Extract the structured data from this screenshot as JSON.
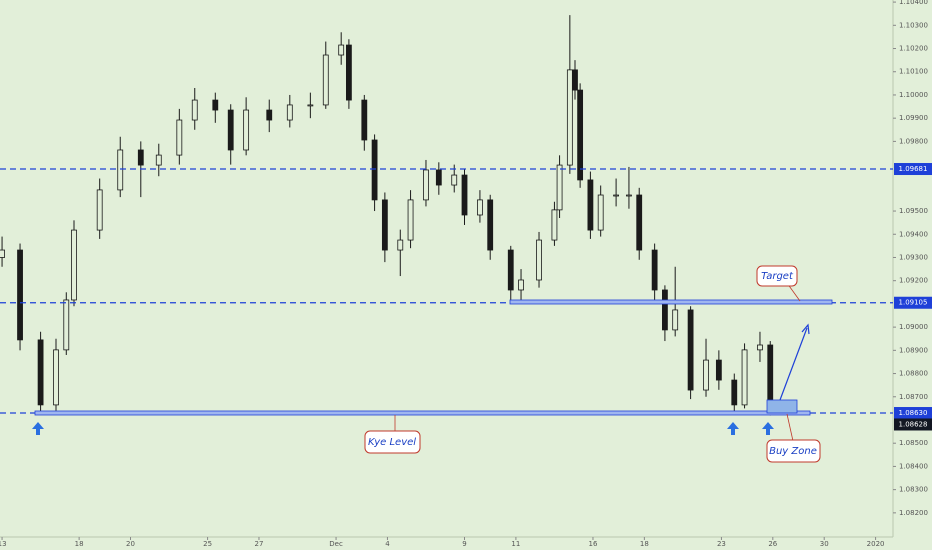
{
  "chart_data": {
    "type": "candlestick",
    "up_color": "#e2efd9",
    "down_color": "#1a1a1a",
    "wick_color": "#1a1a1a",
    "level_color": "#1e40d8",
    "price_color": "#131722",
    "x": [
      0,
      0.7,
      1.5,
      2.1,
      2.5,
      2.8,
      3.8,
      4.6,
      5.4,
      6.1,
      6.9,
      7.5,
      8.3,
      8.9,
      9.5,
      10.4,
      11.2,
      12.0,
      12.6,
      13.2,
      13.5,
      14.1,
      14.5,
      14.9,
      15.5,
      15.9,
      16.5,
      17.0,
      17.6,
      18.0,
      18.6,
      19.0,
      19.8,
      20.2,
      20.9,
      21.5,
      21.7,
      22.1,
      22.3,
      22.5,
      22.9,
      23.3,
      23.9,
      24.4,
      24.8,
      25.4,
      25.8,
      26.2,
      26.8,
      27.4,
      27.9,
      28.5,
      28.9,
      29.5,
      29.9
    ],
    "open": [
      1.093,
      1.09332,
      1.08945,
      1.08665,
      1.08902,
      1.09117,
      1.09418,
      1.09591,
      1.09763,
      1.09698,
      1.09741,
      1.09892,
      1.09978,
      1.09935,
      1.09763,
      1.09935,
      1.09892,
      1.09957,
      1.09957,
      1.10172,
      1.10215,
      1.09978,
      1.09806,
      1.09548,
      1.09332,
      1.09375,
      1.09548,
      1.09677,
      1.09612,
      1.09655,
      1.09483,
      1.09548,
      1.09332,
      1.0916,
      1.09203,
      1.09375,
      1.09505,
      1.09698,
      1.10108,
      1.10021,
      1.09634,
      1.09418,
      1.09569,
      1.09569,
      1.09569,
      1.09332,
      1.0916,
      1.08988,
      1.09074,
      1.08729,
      1.08858,
      1.08772,
      1.08665,
      1.08902,
      1.08923
    ],
    "high": [
      1.0939,
      1.0936,
      1.0898,
      1.0895,
      1.0915,
      1.0946,
      1.0964,
      1.0982,
      1.098,
      1.0979,
      1.0994,
      1.1003,
      1.1001,
      1.0996,
      1.0999,
      1.0998,
      1.1,
      1.1001,
      1.1023,
      1.1027,
      1.1024,
      1.1,
      1.0983,
      1.0958,
      1.0942,
      1.0959,
      1.0972,
      1.0971,
      1.097,
      1.0968,
      1.0959,
      1.0957,
      1.0935,
      1.0925,
      1.0941,
      1.0954,
      1.0974,
      1.10344,
      1.1015,
      1.1005,
      1.0967,
      1.0961,
      1.0964,
      1.0969,
      1.096,
      1.0936,
      1.0918,
      1.0926,
      1.0909,
      1.0895,
      1.089,
      1.088,
      1.0893,
      1.0898,
      1.0894
    ],
    "low": [
      1.0926,
      1.089,
      1.0863,
      1.0864,
      1.0888,
      1.0909,
      1.0938,
      1.0956,
      1.0956,
      1.0965,
      1.097,
      1.0985,
      1.0988,
      1.097,
      1.0974,
      1.0984,
      1.0986,
      1.099,
      1.0994,
      1.1013,
      1.0994,
      1.0976,
      1.095,
      1.0928,
      1.0922,
      1.0934,
      1.0952,
      1.0957,
      1.0958,
      1.0944,
      1.0945,
      1.0929,
      1.0911,
      1.09105,
      1.0917,
      1.0935,
      1.0947,
      1.0966,
      1.0998,
      1.096,
      1.0938,
      1.0939,
      1.0952,
      1.0951,
      1.0929,
      1.0911,
      1.0894,
      1.0896,
      1.0869,
      1.087,
      1.0873,
      1.0863,
      1.0865,
      1.0885,
      1.0862
    ],
    "close": [
      1.09332,
      1.08945,
      1.08665,
      1.08902,
      1.09117,
      1.09418,
      1.09591,
      1.09763,
      1.09698,
      1.09741,
      1.09892,
      1.09978,
      1.09935,
      1.09763,
      1.09935,
      1.09892,
      1.09957,
      1.09957,
      1.10172,
      1.10215,
      1.09978,
      1.09806,
      1.09548,
      1.09332,
      1.09375,
      1.09548,
      1.09677,
      1.09612,
      1.09655,
      1.09483,
      1.09548,
      1.09332,
      1.0916,
      1.09203,
      1.09375,
      1.09505,
      1.09698,
      1.10108,
      1.10021,
      1.09634,
      1.09418,
      1.09569,
      1.09569,
      1.09569,
      1.09332,
      1.0916,
      1.08988,
      1.09074,
      1.08729,
      1.08858,
      1.08772,
      1.08665,
      1.08902,
      1.08923,
      1.08628
    ],
    "xlim": [
      -0.08,
      34.6
    ],
    "xticks": [
      {
        "value": 0,
        "label": "13"
      },
      {
        "value": 3,
        "label": "18"
      },
      {
        "value": 5,
        "label": "20"
      },
      {
        "value": 8,
        "label": "25"
      },
      {
        "value": 10,
        "label": "27"
      },
      {
        "value": 13,
        "label": "Dec"
      },
      {
        "value": 15,
        "label": "4"
      },
      {
        "value": 18,
        "label": "9"
      },
      {
        "value": 20,
        "label": "11"
      },
      {
        "value": 23,
        "label": "16"
      },
      {
        "value": 25,
        "label": "18"
      },
      {
        "value": 28,
        "label": "23"
      },
      {
        "value": 30,
        "label": "26"
      },
      {
        "value": 32,
        "label": "30"
      },
      {
        "value": 34,
        "label": "2020"
      }
    ],
    "ylim": [
      1.08096,
      1.10409
    ],
    "yticks": [
      {
        "value": 1.104,
        "label": "1.10400"
      },
      {
        "value": 1.103,
        "label": "1.10300"
      },
      {
        "value": 1.102,
        "label": "1.10200"
      },
      {
        "value": 1.101,
        "label": "1.10100"
      },
      {
        "value": 1.1,
        "label": "1.10000"
      },
      {
        "value": 1.099,
        "label": "1.09900"
      },
      {
        "value": 1.098,
        "label": "1.09800"
      },
      {
        "value": 1.095,
        "label": "1.09500"
      },
      {
        "value": 1.094,
        "label": "1.09400"
      },
      {
        "value": 1.093,
        "label": "1.09300"
      },
      {
        "value": 1.092,
        "label": "1.09200"
      },
      {
        "value": 1.09,
        "label": "1.09000"
      },
      {
        "value": 1.089,
        "label": "1.08900"
      },
      {
        "value": 1.088,
        "label": "1.08800"
      },
      {
        "value": 1.087,
        "label": "1.08700"
      },
      {
        "value": 1.085,
        "label": "1.08500"
      },
      {
        "value": 1.084,
        "label": "1.08400"
      },
      {
        "value": 1.083,
        "label": "1.08300"
      },
      {
        "value": 1.082,
        "label": "1.08200"
      }
    ],
    "levels": [
      1.09681,
      1.09105,
      {
        "value": 1.0863,
        "label": "1.08630"
      }
    ],
    "current_price": 1.08628,
    "annotations": [
      "Target",
      "Kye Level",
      "Buy Zone"
    ]
  }
}
